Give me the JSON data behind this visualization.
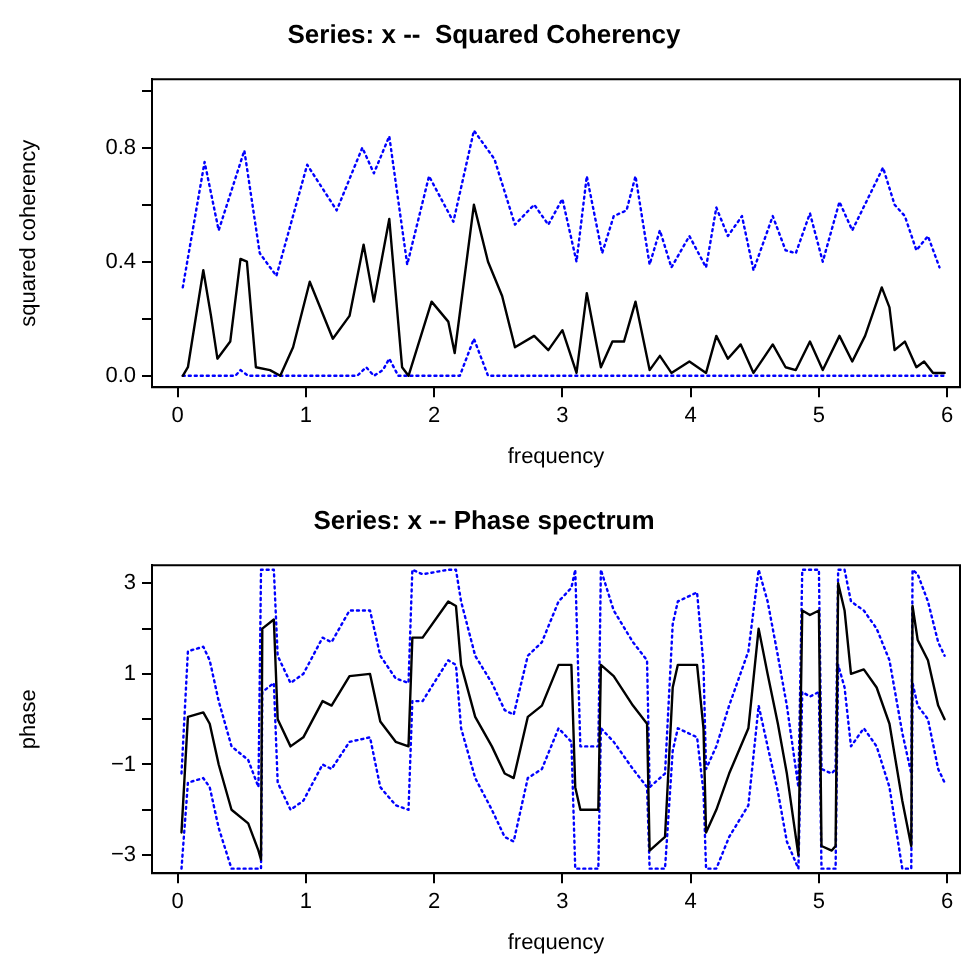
{
  "chart_data": [
    {
      "type": "line",
      "title": "Series: x --  Squared Coherency",
      "xlabel": "frequency",
      "ylabel": "squared coherency",
      "xlim": [
        -0.2,
        6.1
      ],
      "ylim": [
        -0.04,
        1.04
      ],
      "xticks": [
        0,
        1,
        2,
        3,
        4,
        5,
        6
      ],
      "yticks": [
        {
          "value": 0,
          "label": "0.0"
        },
        {
          "value": 0.2,
          "label": null
        },
        {
          "value": 0.4,
          "label": "0.4"
        },
        {
          "value": 0.6,
          "label": null
        },
        {
          "value": 0.8,
          "label": "0.8"
        },
        {
          "value": 1,
          "label": null
        }
      ],
      "grid": false,
      "legend": false,
      "marker": "none",
      "series": [
        {
          "color": "#000000",
          "line_style": "solid",
          "x": [
            0.04,
            0.08,
            0.2,
            0.26,
            0.31,
            0.41,
            0.49,
            0.54,
            0.61,
            0.72,
            0.8,
            0.9,
            1.03,
            1.21,
            1.34,
            1.45,
            1.53,
            1.65,
            1.75,
            1.8,
            1.98,
            2.11,
            2.16,
            2.31,
            2.42,
            2.53,
            2.63,
            2.78,
            2.89,
            3.0,
            3.11,
            3.19,
            3.3,
            3.39,
            3.48,
            3.57,
            3.68,
            3.76,
            3.85,
            3.99,
            4.12,
            4.2,
            4.29,
            4.39,
            4.49,
            4.64,
            4.74,
            4.82,
            4.93,
            5.03,
            5.16,
            5.26,
            5.36,
            5.49,
            5.55,
            5.59,
            5.67,
            5.76,
            5.82,
            5.89,
            5.98
          ],
          "values": [
            0,
            0.03,
            0.37,
            0.21,
            0.06,
            0.12,
            0.41,
            0.4,
            0.03,
            0.02,
            0,
            0.1,
            0.33,
            0.13,
            0.21,
            0.46,
            0.26,
            0.55,
            0.03,
            0,
            0.26,
            0.19,
            0.08,
            0.6,
            0.4,
            0.28,
            0.1,
            0.14,
            0.09,
            0.16,
            0.01,
            0.29,
            0.03,
            0.12,
            0.12,
            0.26,
            0.02,
            0.07,
            0.01,
            0.05,
            0.01,
            0.14,
            0.06,
            0.11,
            0.01,
            0.11,
            0.03,
            0.02,
            0.12,
            0.02,
            0.14,
            0.05,
            0.14,
            0.31,
            0.24,
            0.09,
            0.12,
            0.03,
            0.05,
            0.01,
            0.01
          ]
        },
        {
          "color": "#0000ff",
          "line_style": "dotted",
          "x": [
            0.04,
            0.21,
            0.32,
            0.52,
            0.64,
            0.77,
            1.01,
            1.24,
            1.44,
            1.53,
            1.65,
            1.79,
            1.96,
            2.15,
            2.31,
            2.47,
            2.63,
            2.78,
            2.89,
            3.0,
            3.11,
            3.19,
            3.31,
            3.4,
            3.5,
            3.57,
            3.68,
            3.76,
            3.85,
            3.99,
            4.12,
            4.2,
            4.29,
            4.4,
            4.49,
            4.64,
            4.74,
            4.82,
            4.93,
            5.03,
            5.16,
            5.26,
            5.5,
            5.59,
            5.67,
            5.76,
            5.85,
            5.94
          ],
          "values": [
            0.31,
            0.75,
            0.51,
            0.79,
            0.43,
            0.35,
            0.74,
            0.58,
            0.8,
            0.71,
            0.84,
            0.39,
            0.7,
            0.54,
            0.86,
            0.76,
            0.53,
            0.6,
            0.53,
            0.62,
            0.4,
            0.7,
            0.43,
            0.56,
            0.58,
            0.7,
            0.39,
            0.51,
            0.38,
            0.49,
            0.38,
            0.59,
            0.49,
            0.56,
            0.37,
            0.56,
            0.44,
            0.43,
            0.57,
            0.4,
            0.61,
            0.51,
            0.73,
            0.6,
            0.56,
            0.44,
            0.49,
            0.38
          ]
        },
        {
          "color": "#0000ff",
          "line_style": "dotted",
          "x": [
            0.04,
            0.45,
            0.49,
            0.55,
            1.4,
            1.47,
            1.53,
            1.6,
            1.65,
            1.72,
            2.2,
            2.31,
            2.42,
            6.0
          ],
          "values": [
            0,
            0,
            0.02,
            0,
            0,
            0.03,
            0,
            0.02,
            0.06,
            0,
            0,
            0.13,
            0,
            0
          ]
        }
      ]
    },
    {
      "type": "line",
      "title": "Series: x -- Phase spectrum",
      "xlabel": "frequency",
      "ylabel": "phase",
      "xlim": [
        -0.2,
        6.1
      ],
      "ylim": [
        -3.4,
        3.4
      ],
      "xticks": [
        0,
        1,
        2,
        3,
        4,
        5,
        6
      ],
      "yticks": [
        {
          "value": -3,
          "label": "−3"
        },
        {
          "value": -2,
          "label": null
        },
        {
          "value": -1,
          "label": "−1"
        },
        {
          "value": 0,
          "label": null
        },
        {
          "value": 1,
          "label": "1"
        },
        {
          "value": 2,
          "label": null
        },
        {
          "value": 3,
          "label": "3"
        }
      ],
      "grid": false,
      "legend": false,
      "marker": "none",
      "series": [
        {
          "color": "#000000",
          "line_style": "solid",
          "x": [
            0.03,
            0.08,
            0.2,
            0.25,
            0.32,
            0.42,
            0.55,
            0.63,
            0.65,
            0.66,
            0.75,
            0.78,
            0.88,
            0.98,
            1.13,
            1.2,
            1.34,
            1.5,
            1.58,
            1.7,
            1.8,
            1.83,
            1.91,
            2.11,
            2.17,
            2.21,
            2.32,
            2.45,
            2.55,
            2.62,
            2.73,
            2.84,
            2.97,
            3.07,
            3.1,
            3.14,
            3.28,
            3.3,
            3.4,
            3.55,
            3.66,
            3.68,
            3.8,
            3.86,
            3.9,
            4.05,
            4.1,
            4.12,
            4.2,
            4.3,
            4.45,
            4.53,
            4.6,
            4.68,
            4.75,
            4.84,
            4.87,
            4.93,
            5.0,
            5.02,
            5.1,
            5.13,
            5.15,
            5.2,
            5.25,
            5.35,
            5.45,
            5.55,
            5.65,
            5.72,
            5.73,
            5.77,
            5.85,
            5.93,
            5.98
          ],
          "values": [
            -2.5,
            0.05,
            0.15,
            -0.1,
            -1.0,
            -2.0,
            -2.3,
            -2.9,
            -3.1,
            2.0,
            2.2,
            0.0,
            -0.6,
            -0.4,
            0.4,
            0.3,
            0.95,
            1.0,
            -0.05,
            -0.5,
            -0.6,
            1.8,
            1.8,
            2.6,
            2.5,
            1.2,
            0.05,
            -0.6,
            -1.2,
            -1.3,
            0.05,
            0.3,
            1.2,
            1.2,
            -1.5,
            -2.0,
            -2.0,
            1.2,
            0.95,
            0.3,
            -0.1,
            -2.9,
            -2.6,
            0.7,
            1.2,
            1.2,
            -0.2,
            -2.5,
            -2.0,
            -1.2,
            -0.2,
            2.0,
            1.0,
            -0.1,
            -1.2,
            -3.0,
            2.4,
            2.3,
            2.4,
            -2.8,
            -2.9,
            -2.8,
            3.0,
            2.4,
            1.0,
            1.1,
            0.7,
            -0.1,
            -1.8,
            -2.8,
            2.5,
            1.75,
            1.3,
            0.3,
            0.0
          ]
        },
        {
          "color": "#0000ff",
          "line_style": "dotted",
          "x": [
            0.03,
            0.08,
            0.2,
            0.25,
            0.32,
            0.42,
            0.55,
            0.63,
            0.65,
            0.66,
            0.75,
            0.78,
            0.88,
            0.98,
            1.13,
            1.2,
            1.34,
            1.5,
            1.58,
            1.7,
            1.8,
            1.83,
            1.91,
            2.11,
            2.17,
            2.21,
            2.32,
            2.45,
            2.55,
            2.62,
            2.73,
            2.84,
            2.97,
            3.07,
            3.1,
            3.14,
            3.28,
            3.3,
            3.4,
            3.55,
            3.66,
            3.68,
            3.8,
            3.86,
            3.9,
            4.05,
            4.1,
            4.12,
            4.2,
            4.3,
            4.45,
            4.53,
            4.6,
            4.68,
            4.75,
            4.84,
            4.87,
            4.93,
            5.0,
            5.02,
            5.1,
            5.13,
            5.15,
            5.2,
            5.25,
            5.35,
            5.45,
            5.55,
            5.65,
            5.72,
            5.73,
            5.77,
            5.85,
            5.93,
            5.98
          ],
          "values": [
            -1.2,
            1.5,
            1.6,
            1.3,
            0.4,
            -0.6,
            -0.9,
            -1.5,
            3.3,
            3.3,
            3.3,
            1.4,
            0.8,
            1.0,
            1.8,
            1.7,
            2.4,
            2.4,
            1.4,
            0.9,
            0.8,
            3.3,
            3.2,
            3.3,
            3.3,
            2.6,
            1.4,
            0.8,
            0.2,
            0.1,
            1.4,
            1.7,
            2.6,
            2.9,
            3.3,
            -0.6,
            -0.6,
            3.3,
            2.4,
            1.7,
            1.3,
            -1.5,
            -1.2,
            2.1,
            2.6,
            2.8,
            1.2,
            -1.1,
            -0.6,
            0.3,
            1.5,
            3.3,
            2.6,
            1.4,
            0.3,
            -1.5,
            3.3,
            3.3,
            3.3,
            -1.1,
            -1.2,
            -1.1,
            3.3,
            3.3,
            2.6,
            2.4,
            2.0,
            1.3,
            -0.3,
            -1.2,
            3.3,
            3.2,
            2.6,
            1.7,
            1.4
          ]
        },
        {
          "color": "#0000ff",
          "line_style": "dotted",
          "x": [
            0.03,
            0.08,
            0.2,
            0.25,
            0.32,
            0.42,
            0.55,
            0.63,
            0.65,
            0.66,
            0.75,
            0.78,
            0.88,
            0.98,
            1.13,
            1.2,
            1.34,
            1.5,
            1.58,
            1.7,
            1.8,
            1.83,
            1.91,
            2.11,
            2.17,
            2.21,
            2.32,
            2.45,
            2.55,
            2.62,
            2.73,
            2.84,
            2.97,
            3.07,
            3.1,
            3.14,
            3.28,
            3.3,
            3.4,
            3.55,
            3.66,
            3.68,
            3.8,
            3.86,
            3.9,
            4.05,
            4.1,
            4.12,
            4.2,
            4.3,
            4.45,
            4.53,
            4.6,
            4.68,
            4.75,
            4.84,
            4.87,
            4.93,
            5.0,
            5.02,
            5.1,
            5.13,
            5.15,
            5.2,
            5.25,
            5.35,
            5.45,
            5.55,
            5.65,
            5.72,
            5.73,
            5.77,
            5.85,
            5.93,
            5.98
          ],
          "values": [
            -3.3,
            -1.4,
            -1.3,
            -1.5,
            -2.4,
            -3.3,
            -3.3,
            -3.3,
            -3.3,
            0.6,
            0.8,
            -1.4,
            -2.0,
            -1.8,
            -1.0,
            -1.1,
            -0.5,
            -0.4,
            -1.5,
            -1.9,
            -2.0,
            0.4,
            0.4,
            1.3,
            1.2,
            -0.2,
            -1.3,
            -2.0,
            -2.6,
            -2.7,
            -1.3,
            -1.1,
            -0.2,
            -0.5,
            -3.3,
            -3.3,
            -3.3,
            -0.2,
            -0.5,
            -1.1,
            -1.5,
            -3.3,
            -3.3,
            -0.7,
            -0.2,
            -0.4,
            -1.6,
            -3.3,
            -3.3,
            -2.6,
            -1.9,
            0.3,
            -0.6,
            -1.6,
            -2.7,
            -3.3,
            0.6,
            0.5,
            0.6,
            -3.3,
            -3.3,
            -3.3,
            1.2,
            0.7,
            -0.6,
            -0.2,
            -0.6,
            -1.5,
            -3.3,
            -3.3,
            0.8,
            0.3,
            0.0,
            -1.1,
            -1.4
          ]
        }
      ]
    }
  ]
}
